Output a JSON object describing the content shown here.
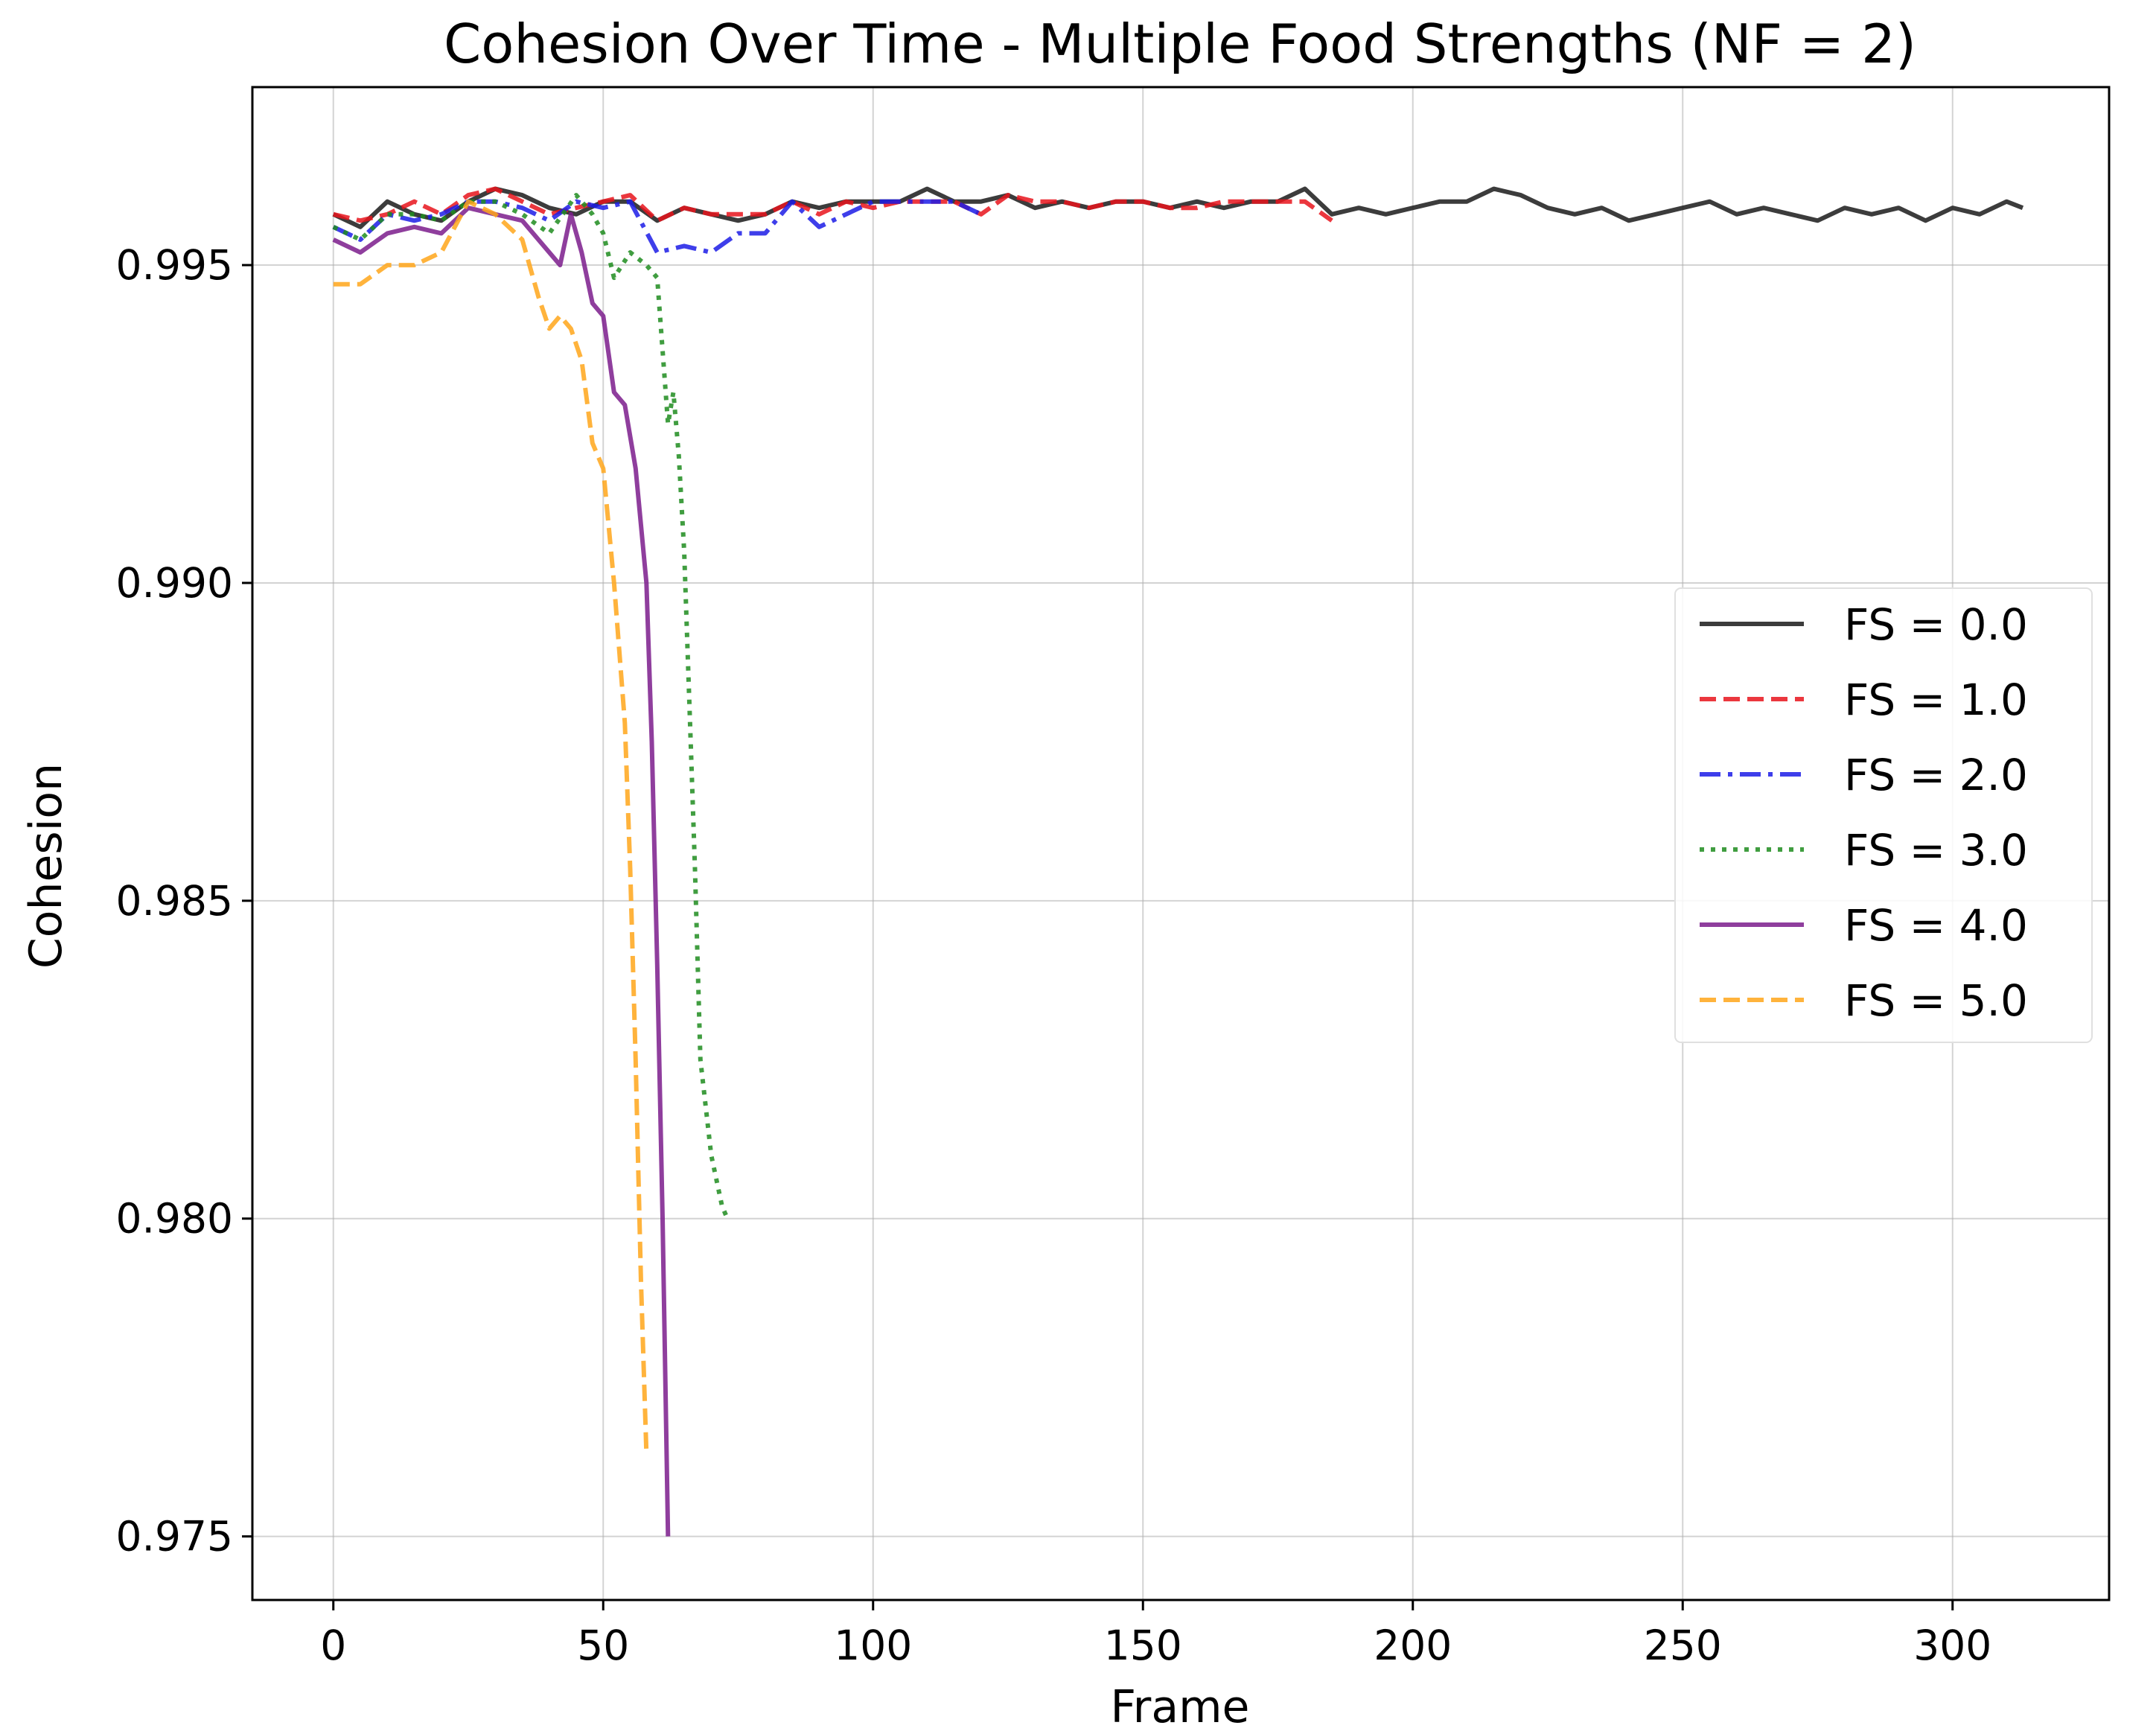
{
  "chart_data": {
    "type": "line",
    "title": "Cohesion Over Time - Multiple Food Strengths (NF = 2)",
    "xlabel": "Frame",
    "ylabel": "Cohesion",
    "xlim": [
      -15,
      329
    ],
    "ylim": [
      0.974,
      0.9978
    ],
    "xticks": [
      0,
      50,
      100,
      150,
      200,
      250,
      300
    ],
    "yticks": [
      0.975,
      0.98,
      0.985,
      0.99,
      0.995
    ],
    "xtick_labels": [
      "0",
      "50",
      "100",
      "150",
      "200",
      "250",
      "300"
    ],
    "ytick_labels": [
      "0.975",
      "0.980",
      "0.985",
      "0.990",
      "0.995"
    ],
    "grid": true,
    "legend_position": "center-right",
    "series": [
      {
        "name": "FS = 0.0",
        "color": "#1a1a1a",
        "style": "solid",
        "x": [
          0,
          5,
          10,
          15,
          20,
          25,
          30,
          35,
          40,
          45,
          50,
          55,
          60,
          65,
          70,
          75,
          80,
          85,
          90,
          95,
          100,
          105,
          110,
          115,
          120,
          125,
          130,
          135,
          140,
          145,
          150,
          155,
          160,
          165,
          170,
          175,
          180,
          185,
          190,
          195,
          200,
          205,
          210,
          215,
          220,
          225,
          230,
          235,
          240,
          245,
          250,
          255,
          260,
          265,
          270,
          275,
          280,
          285,
          290,
          295,
          300,
          305,
          310,
          313
        ],
        "y": [
          0.9958,
          0.9956,
          0.996,
          0.9958,
          0.9957,
          0.996,
          0.9962,
          0.9961,
          0.9959,
          0.9958,
          0.996,
          0.996,
          0.9957,
          0.9959,
          0.9958,
          0.9957,
          0.9958,
          0.996,
          0.9959,
          0.996,
          0.996,
          0.996,
          0.9962,
          0.996,
          0.996,
          0.9961,
          0.9959,
          0.996,
          0.9959,
          0.996,
          0.996,
          0.9959,
          0.996,
          0.9959,
          0.996,
          0.996,
          0.9962,
          0.9958,
          0.9959,
          0.9958,
          0.9959,
          0.996,
          0.996,
          0.9962,
          0.9961,
          0.9959,
          0.9958,
          0.9959,
          0.9957,
          0.9958,
          0.9959,
          0.996,
          0.9958,
          0.9959,
          0.9958,
          0.9957,
          0.9959,
          0.9958,
          0.9959,
          0.9957,
          0.9959,
          0.9958,
          0.996,
          0.9959
        ]
      },
      {
        "name": "FS = 1.0",
        "color": "#e8141c",
        "style": "dashed",
        "x": [
          0,
          5,
          10,
          15,
          20,
          25,
          30,
          35,
          40,
          45,
          50,
          55,
          60,
          65,
          70,
          75,
          80,
          85,
          90,
          95,
          100,
          105,
          110,
          115,
          120,
          125,
          130,
          135,
          140,
          145,
          150,
          155,
          160,
          165,
          170,
          175,
          180,
          185
        ],
        "y": [
          0.9958,
          0.9957,
          0.9958,
          0.996,
          0.9958,
          0.9961,
          0.9962,
          0.996,
          0.9958,
          0.9959,
          0.996,
          0.9961,
          0.9957,
          0.9959,
          0.9958,
          0.9958,
          0.9958,
          0.996,
          0.9958,
          0.996,
          0.9959,
          0.996,
          0.996,
          0.996,
          0.9958,
          0.9961,
          0.996,
          0.996,
          0.9959,
          0.996,
          0.996,
          0.9959,
          0.9959,
          0.996,
          0.996,
          0.996,
          0.996,
          0.9957
        ]
      },
      {
        "name": "FS = 2.0",
        "color": "#1c1ce6",
        "style": "dashdot",
        "x": [
          0,
          5,
          10,
          15,
          20,
          25,
          30,
          35,
          40,
          45,
          50,
          55,
          60,
          65,
          70,
          75,
          80,
          85,
          90,
          95,
          100,
          105,
          110,
          115,
          120
        ],
        "y": [
          0.9956,
          0.9954,
          0.9958,
          0.9957,
          0.9958,
          0.996,
          0.996,
          0.9959,
          0.9957,
          0.996,
          0.9959,
          0.996,
          0.9952,
          0.9953,
          0.9952,
          0.9955,
          0.9955,
          0.996,
          0.9956,
          0.9958,
          0.996,
          0.996,
          0.996,
          0.996,
          0.9958
        ]
      },
      {
        "name": "FS = 3.0",
        "color": "#1f8c1f",
        "style": "dotted",
        "x": [
          0,
          5,
          10,
          15,
          20,
          25,
          30,
          35,
          40,
          45,
          48,
          50,
          52,
          55,
          58,
          60,
          62,
          63,
          64,
          65,
          66,
          67,
          68,
          70,
          72,
          73
        ],
        "y": [
          0.9956,
          0.9954,
          0.9958,
          0.9958,
          0.9957,
          0.996,
          0.996,
          0.9958,
          0.9955,
          0.9961,
          0.9958,
          0.9955,
          0.9948,
          0.9952,
          0.995,
          0.9948,
          0.9925,
          0.993,
          0.992,
          0.9905,
          0.988,
          0.9855,
          0.9825,
          0.981,
          0.9802,
          0.98
        ]
      },
      {
        "name": "FS = 4.0",
        "color": "#7b1c8c",
        "style": "solid",
        "x": [
          0,
          5,
          10,
          15,
          20,
          25,
          30,
          35,
          40,
          42,
          44,
          46,
          48,
          50,
          52,
          54,
          56,
          58,
          59,
          60,
          61,
          62
        ],
        "y": [
          0.9954,
          0.9952,
          0.9955,
          0.9956,
          0.9955,
          0.9959,
          0.9958,
          0.9957,
          0.9952,
          0.995,
          0.9958,
          0.9952,
          0.9944,
          0.9942,
          0.993,
          0.9928,
          0.9918,
          0.99,
          0.9875,
          0.984,
          0.98,
          0.975
        ]
      },
      {
        "name": "FS = 5.0",
        "color": "#ffa61a",
        "style": "dashed",
        "x": [
          0,
          5,
          10,
          15,
          20,
          25,
          30,
          35,
          38,
          40,
          42,
          44,
          46,
          48,
          50,
          52,
          54,
          55,
          56,
          57,
          58
        ],
        "y": [
          0.9947,
          0.9947,
          0.995,
          0.995,
          0.9952,
          0.996,
          0.9958,
          0.9954,
          0.9945,
          0.994,
          0.9942,
          0.994,
          0.9935,
          0.9922,
          0.9918,
          0.99,
          0.9878,
          0.9855,
          0.9825,
          0.979,
          0.9763
        ]
      }
    ]
  }
}
